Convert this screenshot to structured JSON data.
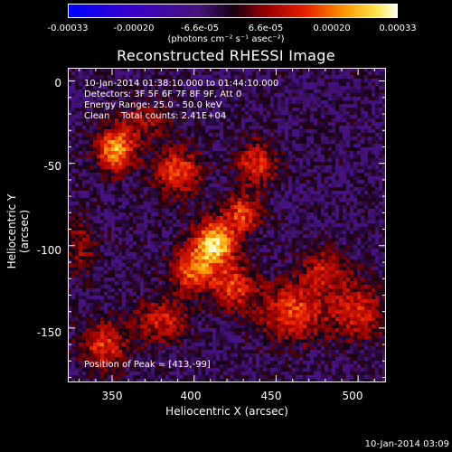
{
  "colorbar": {
    "ticks": [
      "-0.00033",
      "-0.00020",
      "-6.6e-05",
      "6.6e-05",
      "0.00020",
      "0.00033"
    ],
    "units": "(photons cm⁻² s⁻¹ asec⁻²)",
    "range": [
      -0.00033,
      0.00033
    ]
  },
  "chart_data": {
    "type": "heatmap",
    "title": "Reconstructed RHESSI Image",
    "xlabel": "Heliocentric X (arcsec)",
    "ylabel": "Heliocentric Y (arcsec)",
    "xlim": [
      323,
      517
    ],
    "ylim": [
      -183,
      8
    ],
    "x_ticks": [
      350,
      400,
      450,
      500
    ],
    "y_ticks": [
      0,
      -50,
      -100,
      -150
    ],
    "x_tick_labels": [
      "350",
      "400",
      "450",
      "500"
    ],
    "y_tick_labels": [
      "0",
      "-50",
      "-100",
      "-150"
    ],
    "annotations": [
      "10-Jan-2014 01:38:10.000 to 01:44:10.000",
      "Detectors: 3F 5F 6F 7F 8F 9F, Att 0",
      "Energy Range: 25.0 - 50.0 keV",
      "Clean    Total counts: 2.41E+04",
      "Position of Peak = [413,-99]"
    ],
    "peak": {
      "x": 413,
      "y": -99
    },
    "blobs": [
      {
        "x": 413,
        "y": -98,
        "amp": 1.0,
        "sx": 9,
        "sy": 9
      },
      {
        "x": 352,
        "y": -42,
        "amp": 0.85,
        "sx": 8,
        "sy": 9
      },
      {
        "x": 390,
        "y": -55,
        "amp": 0.6,
        "sx": 10,
        "sy": 10
      },
      {
        "x": 438,
        "y": -50,
        "amp": 0.55,
        "sx": 9,
        "sy": 9
      },
      {
        "x": 400,
        "y": -115,
        "amp": 0.7,
        "sx": 10,
        "sy": 9
      },
      {
        "x": 425,
        "y": -125,
        "amp": 0.55,
        "sx": 9,
        "sy": 10
      },
      {
        "x": 380,
        "y": -145,
        "amp": 0.5,
        "sx": 11,
        "sy": 9
      },
      {
        "x": 460,
        "y": -140,
        "amp": 0.6,
        "sx": 14,
        "sy": 12
      },
      {
        "x": 500,
        "y": -140,
        "amp": 0.5,
        "sx": 12,
        "sy": 12
      },
      {
        "x": 345,
        "y": -160,
        "amp": 0.55,
        "sx": 10,
        "sy": 10
      },
      {
        "x": 430,
        "y": -80,
        "amp": 0.6,
        "sx": 8,
        "sy": 8
      },
      {
        "x": 370,
        "y": -25,
        "amp": 0.35,
        "sx": 12,
        "sy": 8
      },
      {
        "x": 480,
        "y": -115,
        "amp": 0.45,
        "sx": 10,
        "sy": 9
      },
      {
        "x": 330,
        "y": -100,
        "amp": 0.3,
        "sx": 8,
        "sy": 12
      }
    ]
  },
  "footer": {
    "timestamp": "10-Jan-2014 03:09"
  }
}
